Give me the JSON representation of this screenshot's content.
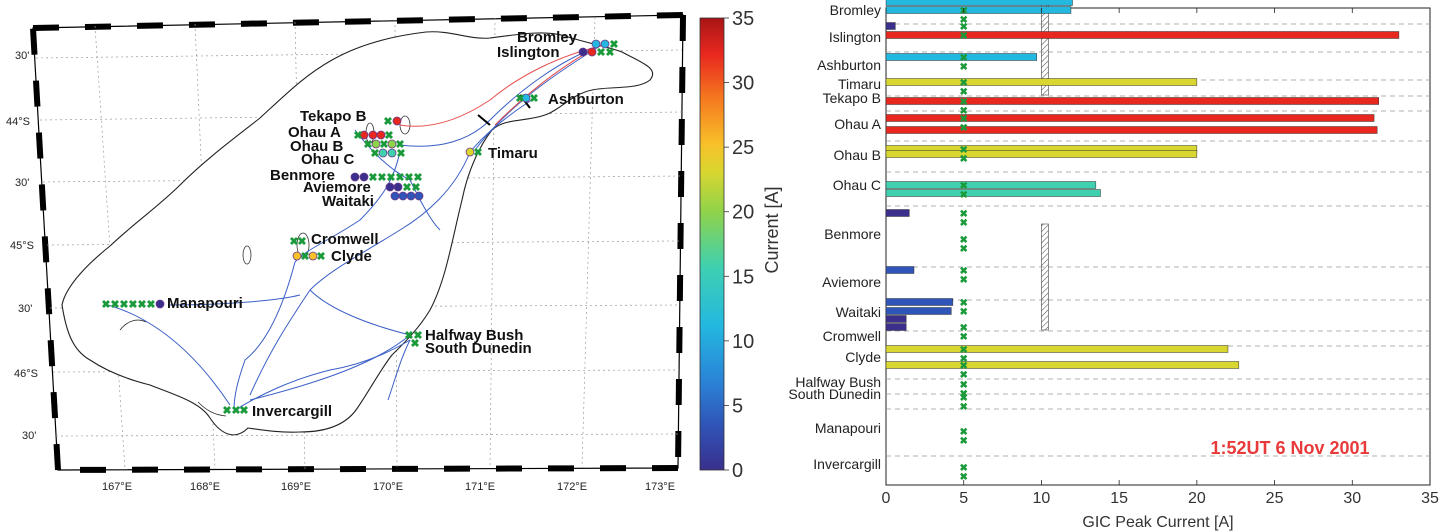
{
  "colorbar": {
    "label": "Current [A]",
    "ticks": [
      "0",
      "5",
      "10",
      "15",
      "20",
      "25",
      "30",
      "35"
    ],
    "range": [
      0,
      35
    ],
    "colors": [
      "#3a2f8c",
      "#2f55b8",
      "#2a85d8",
      "#23b8e0",
      "#3fd0b0",
      "#8fd34a",
      "#d9d630",
      "#f7c12a",
      "#f57a1f",
      "#e8281f",
      "#a81515"
    ]
  },
  "map": {
    "lon_labels": [
      "167°E",
      "168°E",
      "169°E",
      "170°E",
      "171°E",
      "172°E",
      "173°E"
    ],
    "lat_labels": [
      "30'",
      "44°S",
      "30'",
      "45°S",
      "30'",
      "46°S",
      "30'"
    ],
    "lat_labels_top": "30'",
    "sites": [
      {
        "name": "Bromley"
      },
      {
        "name": "Islington"
      },
      {
        "name": "Ashburton"
      },
      {
        "name": "Tekapo B"
      },
      {
        "name": "Ohau A"
      },
      {
        "name": "Ohau B"
      },
      {
        "name": "Ohau C"
      },
      {
        "name": "Timaru"
      },
      {
        "name": "Benmore"
      },
      {
        "name": "Aviemore"
      },
      {
        "name": "Waitaki"
      },
      {
        "name": "Cromwell"
      },
      {
        "name": "Clyde"
      },
      {
        "name": "Manapouri"
      },
      {
        "name": "Halfway Bush"
      },
      {
        "name": "South Dunedin"
      },
      {
        "name": "Invercargill"
      }
    ]
  },
  "chart_data": {
    "type": "bar",
    "orientation": "horizontal",
    "xlabel": "GIC Peak Current [A]",
    "xlim": [
      0,
      35
    ],
    "xticks": [
      "0",
      "5",
      "10",
      "15",
      "20",
      "25",
      "30",
      "35"
    ],
    "annotation": "1:52UT 6 Nov 2001",
    "threshold_x": 5,
    "groups": [
      {
        "label": "Bromley",
        "values": [
          11.9,
          12.0
        ]
      },
      {
        "label": "Islington",
        "values": [
          0.6,
          33.0
        ]
      },
      {
        "label": "Ashburton",
        "values": [
          9.7
        ]
      },
      {
        "label": "Timaru",
        "values": [
          20.0
        ]
      },
      {
        "label": "Tekapo B",
        "values": [
          31.7
        ]
      },
      {
        "label": "Ohau A",
        "values": [
          31.4,
          31.6
        ]
      },
      {
        "label": "Ohau B",
        "values": [
          20.0,
          20.0
        ]
      },
      {
        "label": "Ohau C",
        "values": [
          13.5,
          13.8
        ]
      },
      {
        "label": "Benmore",
        "values": [
          1.5
        ]
      },
      {
        "label": "Aviemore",
        "values": [
          1.8
        ]
      },
      {
        "label": "Waitaki",
        "values": [
          4.3,
          4.2,
          1.3,
          1.3
        ]
      },
      {
        "label": "Cromwell",
        "values": [
          22.0
        ]
      },
      {
        "label": "Clyde",
        "values": [
          22.7
        ]
      },
      {
        "label": "Halfway Bush",
        "values": []
      },
      {
        "label": "South Dunedin",
        "values": []
      },
      {
        "label": "Manapouri",
        "values": []
      },
      {
        "label": "Invercargill",
        "values": []
      }
    ]
  }
}
